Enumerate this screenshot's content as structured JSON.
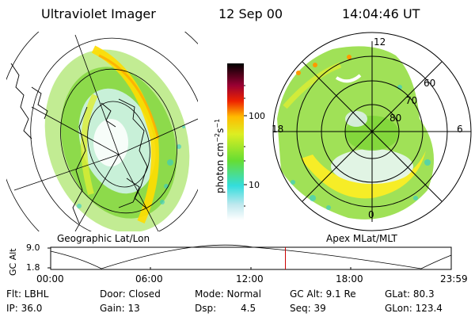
{
  "header": {
    "title": "Ultraviolet Imager",
    "date": "12 Sep 00",
    "time": "14:04:46 UT"
  },
  "left_panel": {
    "label": "Geographic Lat/Lon"
  },
  "right_panel": {
    "label": "Apex MLat/MLT",
    "mlt_labels": [
      "12",
      "18",
      "6",
      "0"
    ],
    "lat_labels": [
      "60",
      "70",
      "80"
    ]
  },
  "colorbar": {
    "unit": "photon cm",
    "unit_sup1": "−2",
    "unit_mid": "s",
    "unit_sup2": "−1",
    "ticks": [
      "100",
      "10"
    ]
  },
  "altitude_plot": {
    "ylabel": "GC Alt",
    "yticks": [
      "9.0",
      "1.8"
    ],
    "xticks": [
      "00:00",
      "06:00",
      "12:00",
      "18:00",
      "23:59"
    ],
    "current_time_fraction": 0.586
  },
  "status": {
    "flt": "Flt: LBHL",
    "ip": "IP: 36.0",
    "door": "Door: Closed",
    "gain": "Gain: 13",
    "mode": "Mode: Normal",
    "dsp_label": "Dsp:",
    "dsp_value": "4.5",
    "gc_alt": "GC Alt: 9.1 Re",
    "seq": "Seq: 39",
    "glat": "GLat: 80.3",
    "glon": "GLon: 123.4"
  },
  "colors": {
    "colorbar_top": "#000000",
    "colorbar_red": "#cc0000",
    "colorbar_orange": "#ff9900",
    "colorbar_yellow": "#ffee00",
    "colorbar_green": "#66dd33",
    "colorbar_cyan": "#33dddd",
    "colorbar_bottom": "#ffffff",
    "time_marker": "#cc0000"
  }
}
